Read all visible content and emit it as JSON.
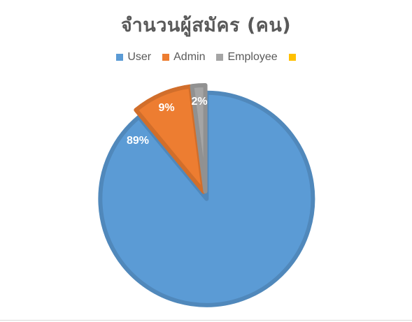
{
  "chart_data": {
    "type": "pie",
    "title": "จำนวนผู้สมัคร (คน)",
    "legend_position": "top",
    "categories": [
      "User",
      "Admin",
      "Employee",
      ""
    ],
    "values": [
      89,
      9,
      2,
      0
    ],
    "data_labels": [
      "89%",
      "9%",
      "2%",
      ""
    ],
    "colors": [
      "#5b9bd5",
      "#ed7d31",
      "#a5a5a5",
      "#ffc000"
    ],
    "start_angle_deg": 0,
    "direction": "counterclockwise-from-top"
  }
}
